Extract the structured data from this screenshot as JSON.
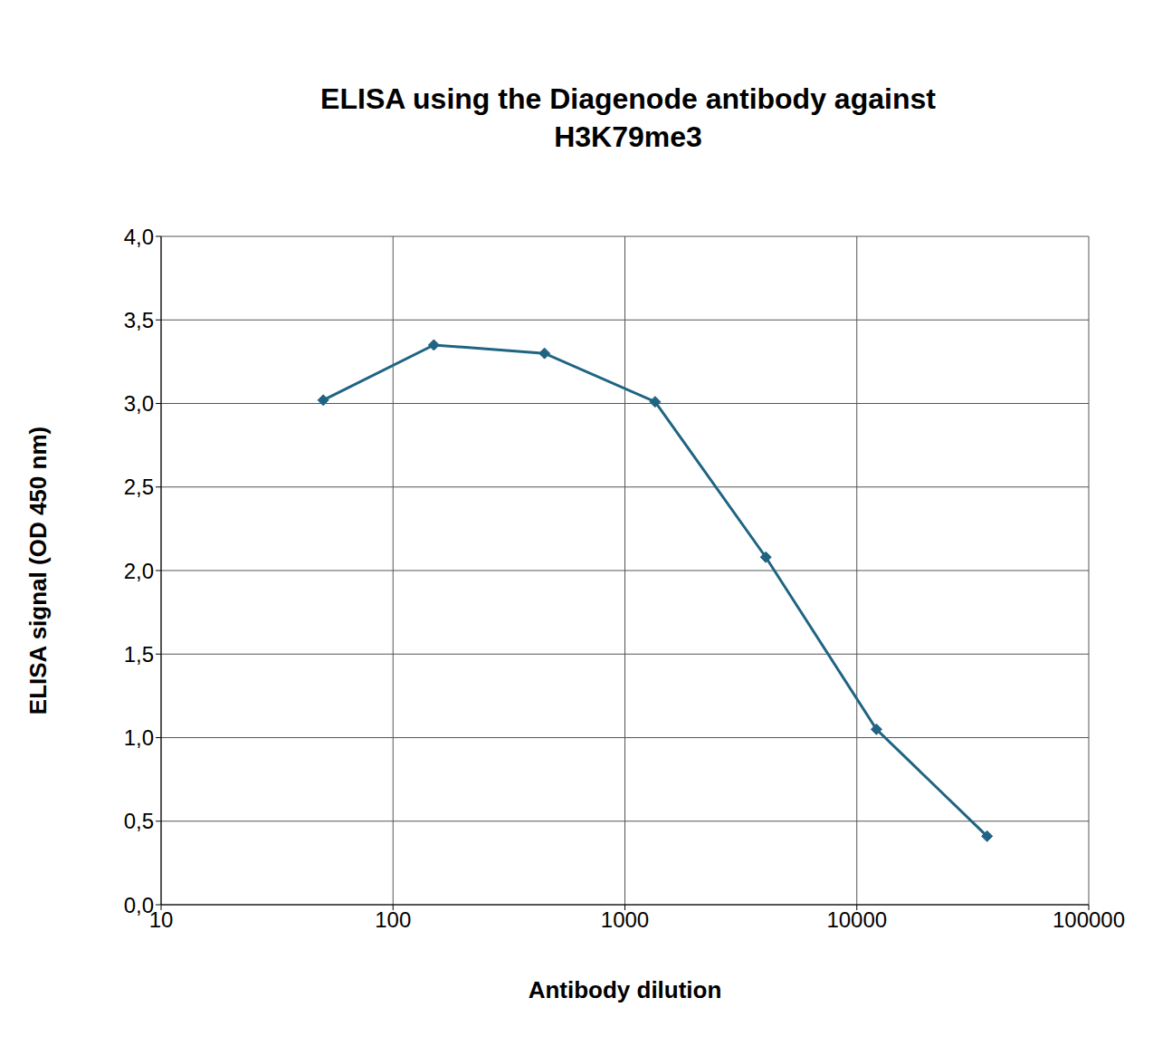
{
  "chart_data": {
    "type": "line",
    "title": "ELISA using the Diagenode antibody against\nH3K79me3",
    "x_label": "Antibody dilution",
    "y_label": "ELISA signal (OD 450 nm)",
    "x": [
      50,
      150,
      450,
      1350,
      4050,
      12150,
      36450
    ],
    "series": [
      {
        "name": "H3K79me3",
        "color": "#1f6482",
        "values": [
          3.02,
          3.35,
          3.3,
          3.01,
          2.08,
          1.05,
          0.41
        ],
        "marker": "diamond",
        "line_style": "solid"
      }
    ],
    "xlim": [
      10,
      100000
    ],
    "xticks": [
      10,
      100,
      1000,
      10000,
      100000
    ],
    "ylim": [
      0,
      4
    ],
    "yticks": [
      {
        "value": 0,
        "label": "0,0"
      },
      {
        "value": 0.5,
        "label": "0,5"
      },
      {
        "value": 1,
        "label": "1,0"
      },
      {
        "value": 1.5,
        "label": "1,5"
      },
      {
        "value": 2,
        "label": "2,0"
      },
      {
        "value": 2.5,
        "label": "2,5"
      },
      {
        "value": 3,
        "label": "3,0"
      },
      {
        "value": 3.5,
        "label": "3,5"
      },
      {
        "value": 4,
        "label": "4,0"
      }
    ],
    "log": "x",
    "grid": true
  }
}
